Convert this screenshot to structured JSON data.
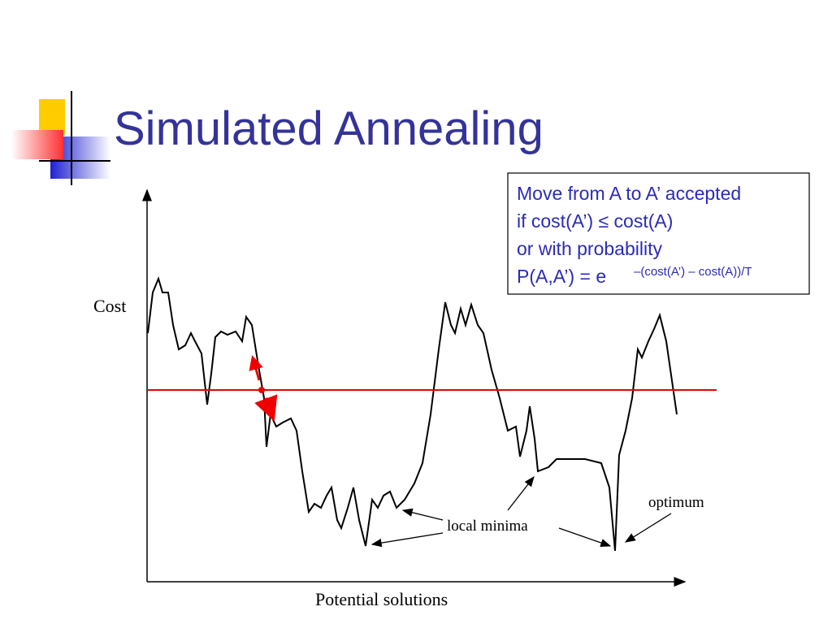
{
  "title": "Simulated Annealing",
  "rule_box": {
    "lines": [
      "Move from A to A’ accepted",
      "if cost(A’) ≤ cost(A)",
      "or with probability",
      "P(A,A’) = e"
    ],
    "exponent": "–(cost(A’) – cost(A))/T"
  },
  "diagram": {
    "y_axis_label": "Cost",
    "x_axis_label": "Potential solutions",
    "annotations": [
      "local minima",
      "optimum"
    ]
  }
}
